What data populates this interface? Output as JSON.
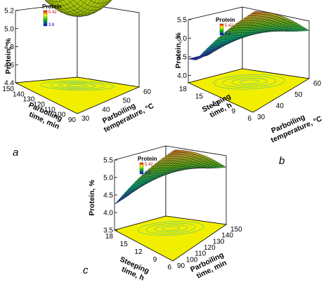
{
  "chart_data": [
    {
      "type": "surface",
      "panel_label": "a",
      "zlabel": "Protein, %",
      "zticks": [
        "4.4",
        "4.6",
        "4.8",
        "5.0",
        "5.2"
      ],
      "zlim": [
        4.4,
        5.2
      ],
      "x_axis": {
        "label": [
          "Parboiling",
          "temperature, °C"
        ],
        "ticks": [
          "30",
          "40",
          "50",
          "60"
        ]
      },
      "y_axis": {
        "label": [
          "Parboiling",
          "time, min"
        ],
        "ticks": [
          "90",
          "100",
          "110",
          "120",
          "130",
          "140",
          "150"
        ]
      },
      "legend": {
        "title": "Protein",
        "max": "5.42",
        "min": "3.8"
      },
      "surface_color": "#b8d400",
      "shape": "bowl",
      "minimum": 4.6
    },
    {
      "type": "surface",
      "panel_label": "b",
      "zlabel": "Protein, %",
      "zticks": [
        "4.0",
        "4.5",
        "5.0",
        "5.5"
      ],
      "zlim": [
        3.8,
        5.5
      ],
      "x_axis": {
        "label": [
          "Parboiling",
          "temperature, °C"
        ],
        "ticks": [
          "30",
          "40",
          "50",
          "60"
        ]
      },
      "y_axis": {
        "label": [
          "Steeping",
          "time, h"
        ],
        "ticks": [
          "6",
          "9",
          "12",
          "15",
          "18"
        ]
      },
      "legend": {
        "title": "Protein",
        "max": "5.42",
        "min": "3.8"
      },
      "surface_color": "#c9a233",
      "shape": "twisted"
    },
    {
      "type": "surface",
      "panel_label": "c",
      "zlabel": "Protein, %",
      "zticks": [
        "3.5",
        "4.0",
        "4.5",
        "5.0",
        "5.5"
      ],
      "zlim": [
        3.5,
        5.5
      ],
      "x_axis": {
        "label": [
          "Parboiling",
          "time, min"
        ],
        "ticks": [
          "90",
          "100",
          "110",
          "120",
          "130",
          "140",
          "150"
        ]
      },
      "y_axis": {
        "label": [
          "Steeping",
          "time, h"
        ],
        "ticks": [
          "6",
          "9",
          "12",
          "15",
          "18"
        ]
      },
      "legend": {
        "title": "Protein",
        "max": "5.42",
        "min": "3.8"
      },
      "surface_color": "#c9a233",
      "shape": "twisted"
    }
  ]
}
